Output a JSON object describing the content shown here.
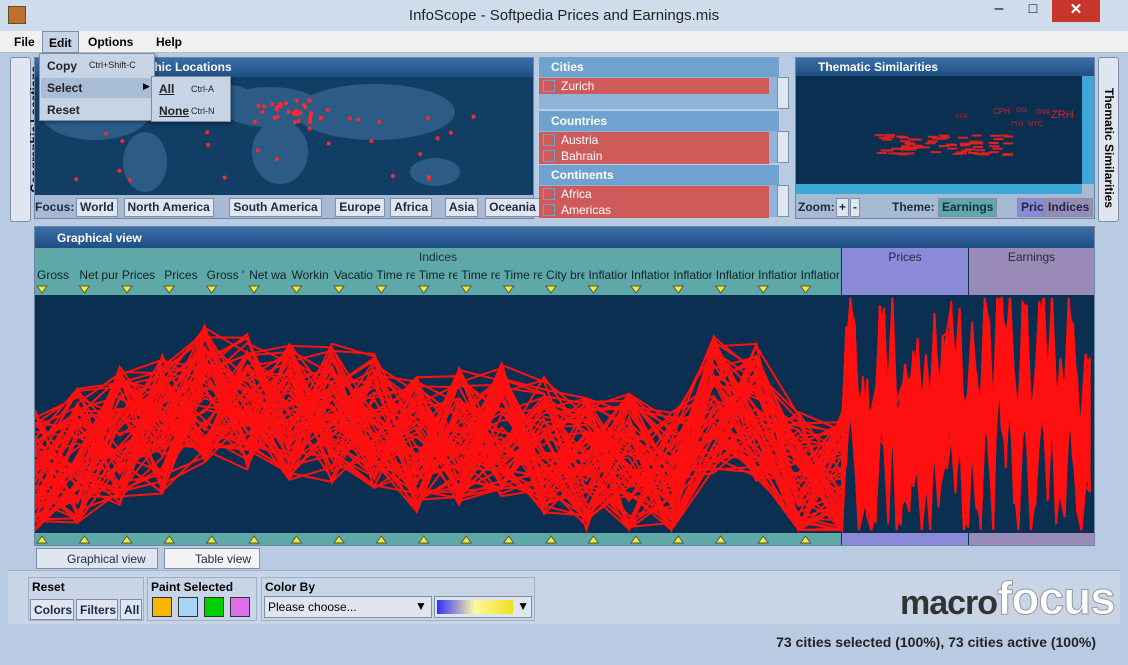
{
  "window": {
    "title": "InfoScope - Softpedia Prices and Earnings.mis"
  },
  "menu": {
    "items": [
      "File",
      "Edit",
      "Options",
      "Help"
    ]
  },
  "edit_menu": {
    "items": [
      {
        "label": "Copy",
        "shortcut": "Ctrl+Shift-C"
      },
      {
        "label": "Select"
      },
      {
        "label": "Reset"
      }
    ]
  },
  "select_submenu": {
    "items": [
      {
        "label": "All",
        "shortcut": "Ctrl-A"
      },
      {
        "label": "None",
        "shortcut": "Ctrl-N"
      }
    ]
  },
  "sidebar": {
    "left": "Geographic Locations",
    "right": "Thematic Similarities"
  },
  "map": {
    "title": "Geographic Locations",
    "focus_label": "Focus:",
    "focus": [
      "World",
      "North America",
      "South America",
      "Europe",
      "Africa",
      "Asia",
      "Oceania"
    ]
  },
  "lists": [
    {
      "title": "Cities",
      "items": [
        "Zurich"
      ]
    },
    {
      "title": "Countries",
      "items": [
        "Austria",
        "Bahrain"
      ]
    },
    {
      "title": "Continents",
      "items": [
        "Africa",
        "Americas"
      ]
    }
  ],
  "thematic": {
    "title": "Thematic Similarities",
    "labels": [
      "ZRH",
      "CPH",
      "OSL",
      "NYC",
      "GVA",
      "TYO",
      "LUX"
    ],
    "zoom_label": "Zoom:",
    "zoom_buttons": [
      "+",
      "-"
    ],
    "theme_label": "Theme:",
    "themes": [
      "Earnings",
      "Prices",
      "Indices"
    ]
  },
  "graph": {
    "title": "Graphical view",
    "groups": [
      "Indices",
      "Prices",
      "Earnings"
    ],
    "columns": [
      "Gross",
      "Net pur",
      "Prices",
      "Prices",
      "Gross '",
      "Net wa",
      "Workin",
      "Vacatio",
      "Time re",
      "Time re",
      "Time re",
      "Time re",
      "City bre",
      "Inflatior",
      "Inflatior",
      "Inflatior",
      "Inflatior",
      "Inflatior",
      "Inflatior"
    ]
  },
  "tabs": [
    "Graphical view",
    "Table view"
  ],
  "toolbar": {
    "reset": {
      "title": "Reset",
      "buttons": [
        "Colors",
        "Filters",
        "All"
      ]
    },
    "paint": {
      "title": "Paint Selected"
    },
    "color_by": {
      "title": "Color By",
      "placeholder": "Please choose..."
    }
  },
  "logo": {
    "part1": "macro",
    "part2": "focus"
  },
  "status": "73 cities selected (100%), 73 cities active (100%)"
}
